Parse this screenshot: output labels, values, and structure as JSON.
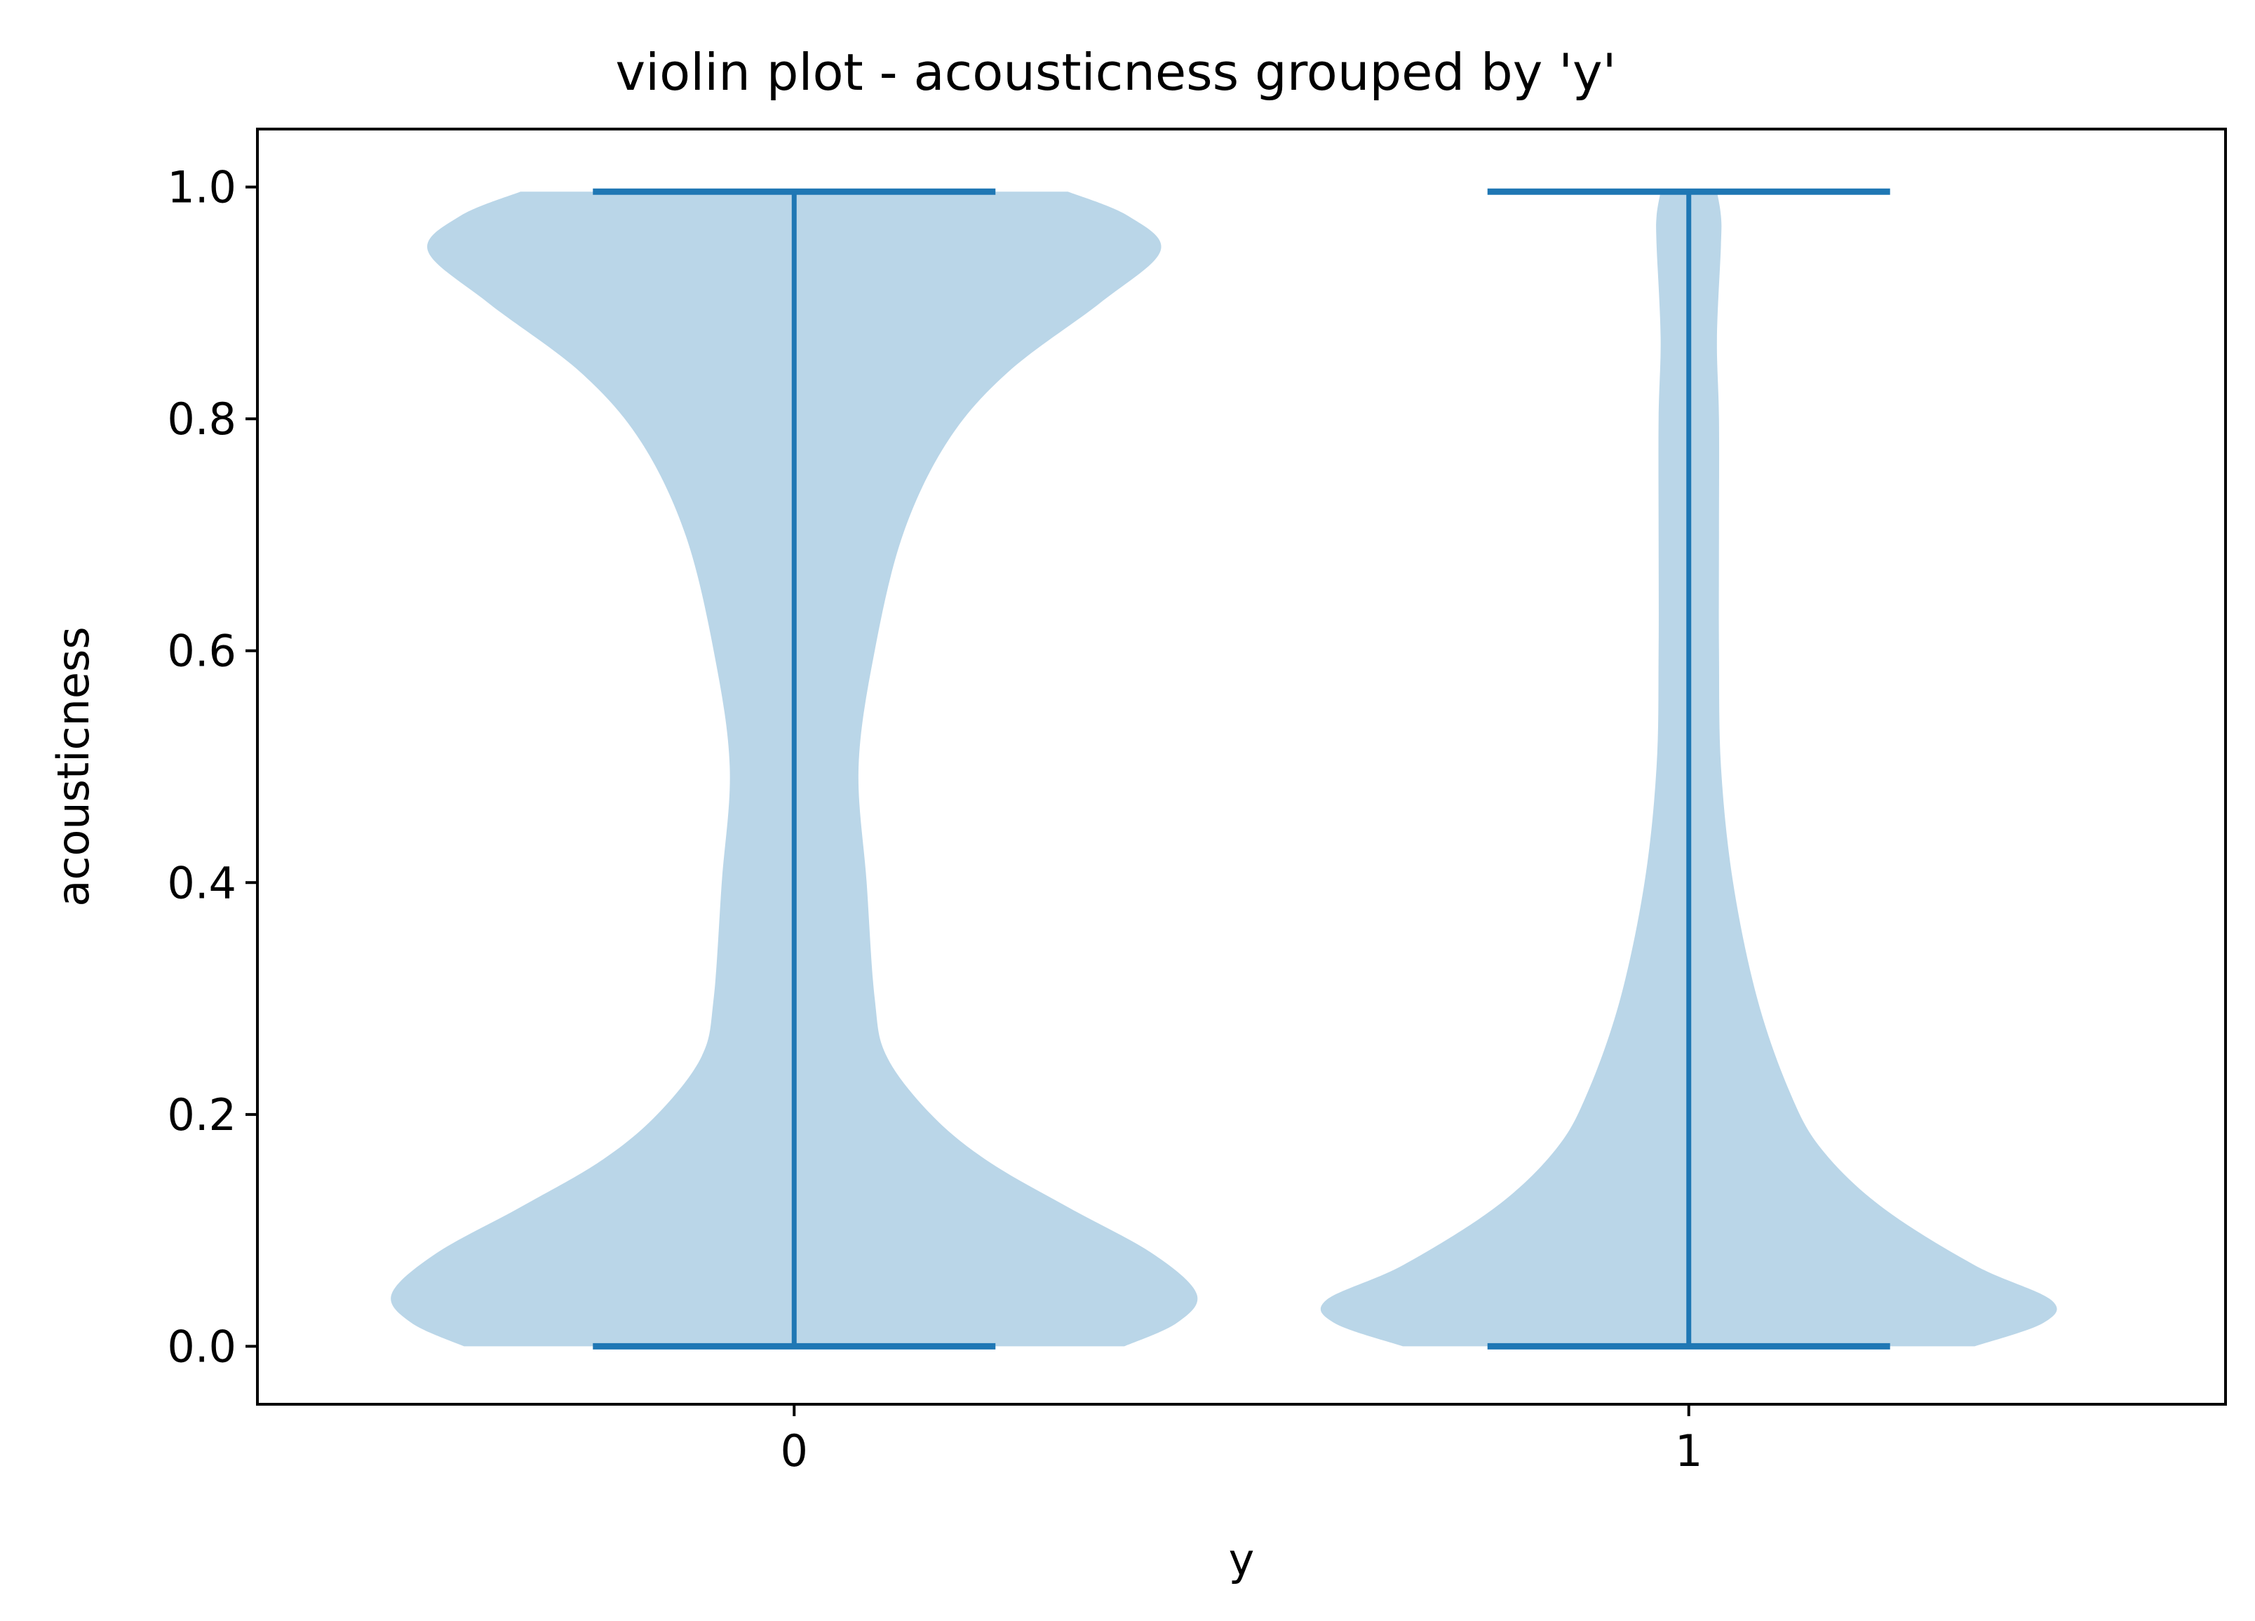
{
  "chart_data": {
    "type": "violin",
    "title": "violin plot - acousticness grouped by 'y'",
    "xlabel": "y",
    "ylabel": "acousticness",
    "categories": [
      "0",
      "1"
    ],
    "ylim": [
      -0.05,
      1.05
    ],
    "yticks": [
      0.0,
      0.2,
      0.4,
      0.6,
      0.8,
      1.0
    ],
    "ytick_labels": [
      "0.0",
      "0.2",
      "0.4",
      "0.6",
      "0.8",
      "1.0"
    ],
    "grid": false,
    "fill_color": "#bad6e8",
    "line_color": "#1f77b4",
    "violins": [
      {
        "category": "0",
        "min": 0.0,
        "max": 0.996,
        "density_profile": [
          [
            0.0,
            0.82
          ],
          [
            0.02,
            0.95
          ],
          [
            0.045,
            1.0
          ],
          [
            0.08,
            0.89
          ],
          [
            0.12,
            0.68
          ],
          [
            0.16,
            0.48
          ],
          [
            0.2,
            0.34
          ],
          [
            0.25,
            0.23
          ],
          [
            0.3,
            0.2
          ],
          [
            0.4,
            0.18
          ],
          [
            0.5,
            0.16
          ],
          [
            0.6,
            0.2
          ],
          [
            0.7,
            0.27
          ],
          [
            0.78,
            0.38
          ],
          [
            0.84,
            0.53
          ],
          [
            0.9,
            0.76
          ],
          [
            0.945,
            0.91
          ],
          [
            0.975,
            0.83
          ],
          [
            0.996,
            0.68
          ]
        ]
      },
      {
        "category": "1",
        "min": 0.0,
        "max": 0.996,
        "density_profile": [
          [
            0.0,
            0.71
          ],
          [
            0.02,
            0.88
          ],
          [
            0.04,
            0.9
          ],
          [
            0.07,
            0.71
          ],
          [
            0.12,
            0.48
          ],
          [
            0.17,
            0.33
          ],
          [
            0.22,
            0.25
          ],
          [
            0.3,
            0.17
          ],
          [
            0.4,
            0.11
          ],
          [
            0.5,
            0.08
          ],
          [
            0.6,
            0.075
          ],
          [
            0.7,
            0.075
          ],
          [
            0.8,
            0.075
          ],
          [
            0.87,
            0.07
          ],
          [
            0.95,
            0.08
          ],
          [
            0.975,
            0.08
          ],
          [
            0.996,
            0.07
          ]
        ]
      }
    ]
  }
}
